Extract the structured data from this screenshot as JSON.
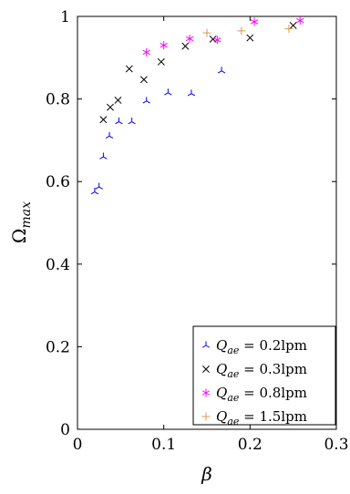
{
  "chart_data": {
    "type": "scatter",
    "xlabel": "β",
    "ylabel": {
      "main": "Ω",
      "sub": "max"
    },
    "xlim": [
      0,
      0.3
    ],
    "ylim": [
      0,
      1
    ],
    "x_ticks": [
      0,
      0.1,
      0.2,
      0.3
    ],
    "x_tick_labels": [
      "0",
      "0.1",
      "0.2",
      "0.3"
    ],
    "y_ticks": [
      0,
      0.2,
      0.4,
      0.6,
      0.8,
      1
    ],
    "y_tick_labels": [
      "0",
      "0.2",
      "0.4",
      "0.6",
      "0.8",
      "1"
    ],
    "grid": false,
    "legend_position": "bottom-right",
    "series": [
      {
        "name": {
          "var": "Q",
          "sub": "ae",
          "value": " = 0.2lpm"
        },
        "marker": "tri",
        "color": "#0000ff",
        "points": [
          [
            0.02,
            0.575
          ],
          [
            0.025,
            0.587
          ],
          [
            0.03,
            0.66
          ],
          [
            0.037,
            0.71
          ],
          [
            0.048,
            0.745
          ],
          [
            0.063,
            0.745
          ],
          [
            0.08,
            0.795
          ],
          [
            0.105,
            0.815
          ],
          [
            0.132,
            0.813
          ],
          [
            0.167,
            0.868
          ]
        ]
      },
      {
        "name": {
          "var": "Q",
          "sub": "ae",
          "value": " = 0.3lpm"
        },
        "marker": "x",
        "color": "#000000",
        "points": [
          [
            0.03,
            0.75
          ],
          [
            0.038,
            0.78
          ],
          [
            0.047,
            0.797
          ],
          [
            0.06,
            0.873
          ],
          [
            0.077,
            0.847
          ],
          [
            0.097,
            0.89
          ],
          [
            0.125,
            0.928
          ],
          [
            0.157,
            0.945
          ],
          [
            0.2,
            0.948
          ],
          [
            0.25,
            0.978
          ]
        ]
      },
      {
        "name": {
          "var": "Q",
          "sub": "ae",
          "value": " = 0.8lpm"
        },
        "marker": "asterisk",
        "color": "#ff00ff",
        "points": [
          [
            0.08,
            0.913
          ],
          [
            0.1,
            0.93
          ],
          [
            0.13,
            0.946
          ],
          [
            0.162,
            0.943
          ],
          [
            0.205,
            0.987
          ],
          [
            0.258,
            0.99
          ]
        ]
      },
      {
        "name": {
          "var": "Q",
          "sub": "ae",
          "value": " = 1.5lpm"
        },
        "marker": "plus",
        "color": "#d89a4e",
        "points": [
          [
            0.15,
            0.96
          ],
          [
            0.19,
            0.965
          ],
          [
            0.245,
            0.97
          ]
        ]
      }
    ]
  }
}
